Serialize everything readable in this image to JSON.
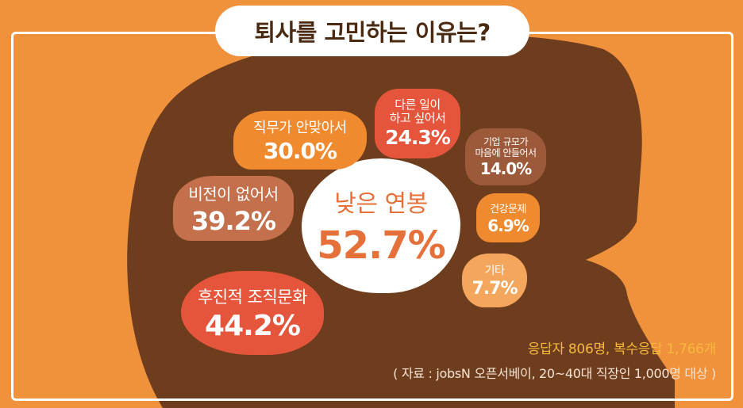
{
  "title": "퇴사를 고민하는 이유는?",
  "colors": {
    "background": "#f0913c",
    "head": "#6e3d1e",
    "white_bubble": "#ffffff",
    "red": "#e5553c",
    "terracotta": "#c4704c",
    "orange": "#ef8a2e",
    "light_orange": "#f3a65c",
    "brown": "#9c5a3a",
    "accent_text": "#f6b93b"
  },
  "chart_data": {
    "type": "bubble",
    "unit": "%",
    "items": [
      {
        "label": "낮은 연봉",
        "value": 52.7,
        "display": "52.7%"
      },
      {
        "label": "후진적 조직문화",
        "value": 44.2,
        "display": "44.2%"
      },
      {
        "label": "비전이 없어서",
        "value": 39.2,
        "display": "39.2%"
      },
      {
        "label": "직무가 안맞아서",
        "value": 30.0,
        "display": "30.0%"
      },
      {
        "label": "다른 일이 하고 싶어서",
        "value": 24.3,
        "display": "24.3%"
      },
      {
        "label": "기업 규모가 마음에 안들어서",
        "value": 14.0,
        "display": "14.0%"
      },
      {
        "label": "기타",
        "value": 7.7,
        "display": "7.7%"
      },
      {
        "label": "건강문제",
        "value": 6.9,
        "display": "6.9%"
      }
    ]
  },
  "bubbles": {
    "salary": {
      "label": "낮은 연봉",
      "value": "52.7%"
    },
    "culture": {
      "label": "후진적 조직문화",
      "value": "44.2%"
    },
    "vision": {
      "label": "비전이 없어서",
      "value": "39.2%"
    },
    "job_fit": {
      "label": "직무가 안맞아서",
      "value": "30.0%"
    },
    "other_work": {
      "label_line1": "다른 일이",
      "label_line2": "하고 싶어서",
      "value": "24.3%"
    },
    "company_size": {
      "label_line1": "기업 규모가",
      "label_line2": "마음에 안들어서",
      "value": "14.0%"
    },
    "health": {
      "label": "건강문제",
      "value": "6.9%"
    },
    "etc": {
      "label": "기타",
      "value": "7.7%"
    }
  },
  "footer": {
    "respondents": "응답자 806명, 복수응답 1,766개",
    "source": "( 자료 : jobsN 오픈서베이, 20~40대 직장인 1,000명 대상 )"
  }
}
